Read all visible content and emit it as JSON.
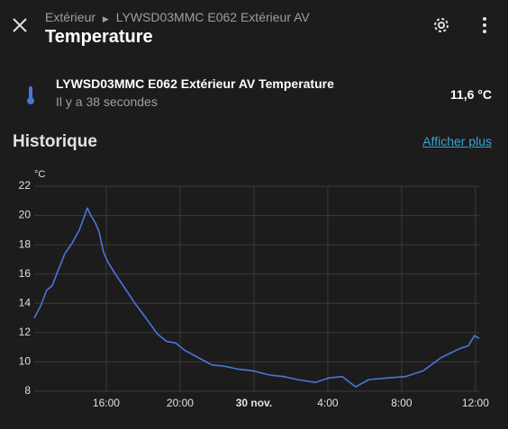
{
  "header": {
    "breadcrumb": "Extérieur",
    "device": "LYWSD03MMC E062 Extérieur AV",
    "title": "Temperature"
  },
  "entity": {
    "name": "LYWSD03MMC E062 Extérieur AV Temperature",
    "updated": "Il y a 38 secondes",
    "state": "11,6 °C"
  },
  "history": {
    "title": "Historique",
    "link": "Afficher plus"
  },
  "chart_data": {
    "type": "line",
    "y_label": "°C",
    "color": "#4a76d8",
    "grid": true,
    "x": [
      12.1,
      12.44,
      12.78,
      13.07,
      13.41,
      13.76,
      14.15,
      14.54,
      14.78,
      14.98,
      15.17,
      15.41,
      15.61,
      15.85,
      16.1,
      16.49,
      16.98,
      17.56,
      18.15,
      18.78,
      19.27,
      19.76,
      20.24,
      20.98,
      21.71,
      22.44,
      23.17,
      23.9,
      24.88,
      25.61,
      26.34,
      27.32,
      28.05,
      28.78,
      29.51,
      30.24,
      31.22,
      32.2,
      33.17,
      34.15,
      35.12,
      35.61,
      35.95,
      36.2
    ],
    "values": [
      13.0,
      13.8,
      14.9,
      15.2,
      16.3,
      17.4,
      18.1,
      19.0,
      19.8,
      20.5,
      20.0,
      19.5,
      18.9,
      17.5,
      16.8,
      16.0,
      15.1,
      14.0,
      13.0,
      11.9,
      11.4,
      11.3,
      10.8,
      10.3,
      9.8,
      9.7,
      9.5,
      9.4,
      9.1,
      9.0,
      8.8,
      8.6,
      8.9,
      9.0,
      8.3,
      8.8,
      8.9,
      9.0,
      9.4,
      10.3,
      10.9,
      11.1,
      11.8,
      11.6
    ],
    "xlim": [
      12.1,
      36.2
    ],
    "xticks": [
      {
        "value": 16,
        "label": "16:00"
      },
      {
        "value": 20,
        "label": "20:00"
      },
      {
        "value": 24,
        "label": "30 nov."
      },
      {
        "value": 28,
        "label": "4:00"
      },
      {
        "value": 32,
        "label": "8:00"
      },
      {
        "value": 36,
        "label": "12:00"
      }
    ],
    "ylim": [
      8,
      22
    ],
    "yticks": [
      8,
      10,
      12,
      14,
      16,
      18,
      20,
      22
    ]
  }
}
